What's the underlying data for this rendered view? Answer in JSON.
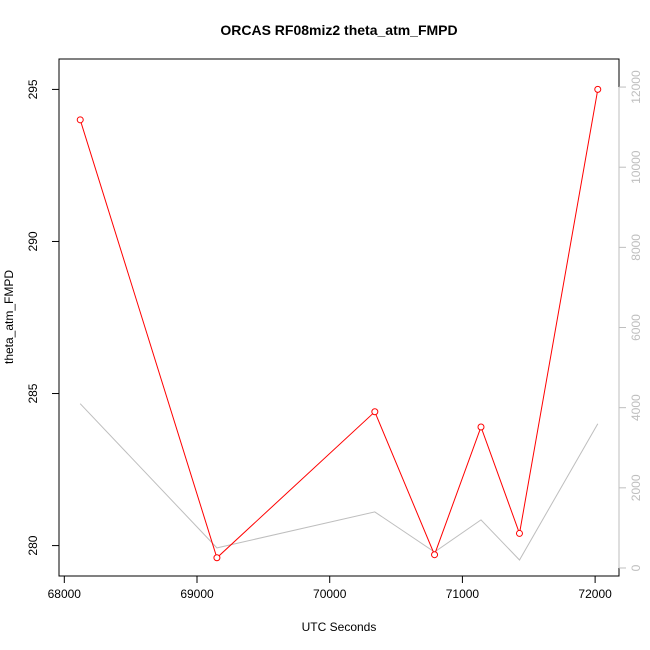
{
  "chart_data": {
    "type": "line",
    "title": "ORCAS RF08miz2 theta_atm_FMPD",
    "xlabel": "UTC Seconds",
    "ylabel": "theta_atm_FMPD",
    "xlim": [
      67960,
      72180
    ],
    "ylim": [
      279.0,
      296.0
    ],
    "y2lim": [
      -200,
      12700
    ],
    "x_ticks": [
      68000,
      69000,
      70000,
      71000,
      72000
    ],
    "y_ticks": [
      280,
      285,
      290,
      295
    ],
    "y2_ticks": [
      0,
      2000,
      4000,
      6000,
      8000,
      10000,
      12000
    ],
    "series": [
      {
        "axis": "left",
        "color": "#ff0000",
        "markers": true,
        "x": [
          68120,
          69150,
          70340,
          70790,
          71140,
          71430,
          72020
        ],
        "y": [
          294.0,
          279.6,
          284.4,
          279.7,
          283.9,
          280.4,
          295.0
        ]
      },
      {
        "axis": "right",
        "color": "#bebebe",
        "markers": false,
        "x": [
          68120,
          69150,
          70340,
          70790,
          71140,
          71430,
          72020
        ],
        "y": [
          4100,
          500,
          1400,
          400,
          1200,
          200,
          3600
        ]
      }
    ],
    "grid": false,
    "legend": "none"
  }
}
